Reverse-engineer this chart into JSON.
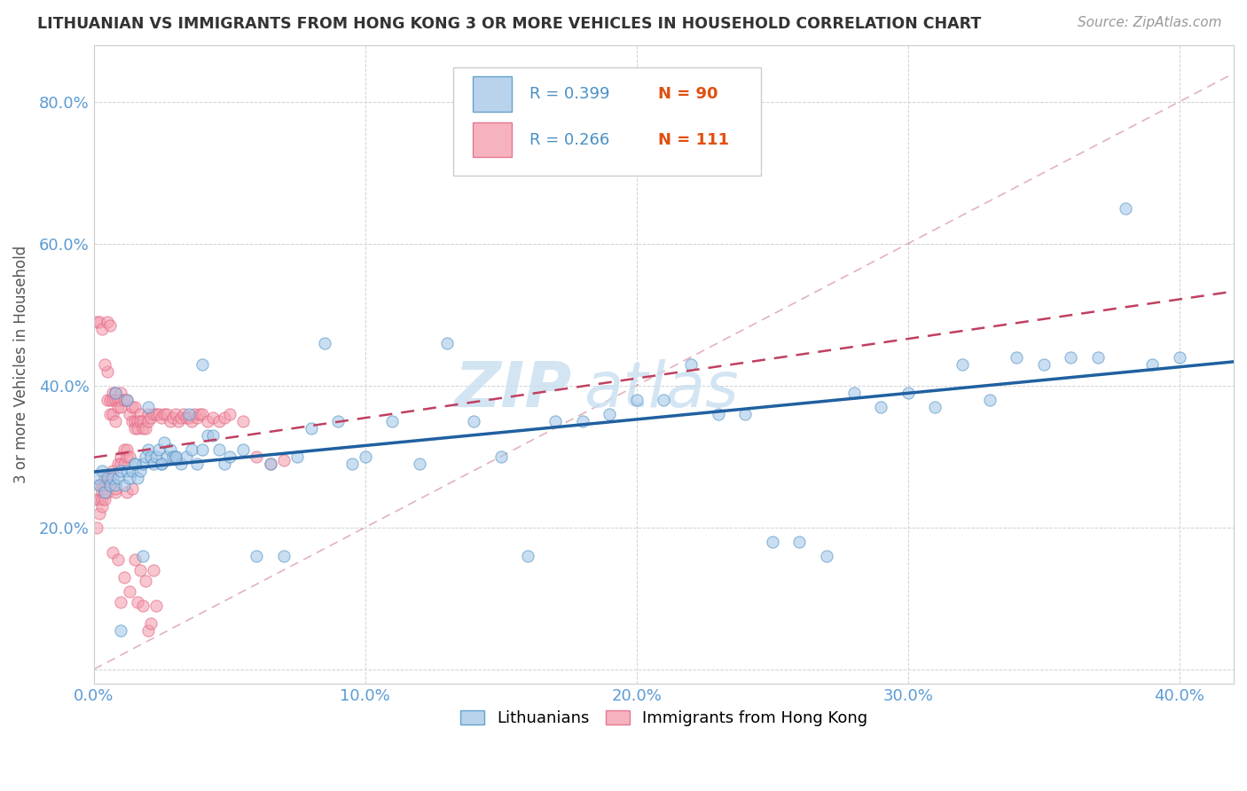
{
  "title": "LITHUANIAN VS IMMIGRANTS FROM HONG KONG 3 OR MORE VEHICLES IN HOUSEHOLD CORRELATION CHART",
  "source": "Source: ZipAtlas.com",
  "ylabel": "3 or more Vehicles in Household",
  "xlim": [
    0.0,
    0.42
  ],
  "ylim": [
    -0.02,
    0.88
  ],
  "xticks": [
    0.0,
    0.1,
    0.2,
    0.3,
    0.4
  ],
  "yticks": [
    0.0,
    0.2,
    0.4,
    0.6,
    0.8
  ],
  "ytick_labels": [
    "",
    "20.0%",
    "40.0%",
    "60.0%",
    "80.0%"
  ],
  "xtick_labels": [
    "0.0%",
    "10.0%",
    "20.0%",
    "30.0%",
    "40.0%"
  ],
  "blue_color": "#a8c8e8",
  "pink_color": "#f4a0b0",
  "blue_edge_color": "#4a90c4",
  "pink_edge_color": "#e06080",
  "blue_line_color": "#2060a0",
  "pink_line_color": "#c04060",
  "diag_line_color": "#d08090",
  "watermark_color": "#c8dff0",
  "legend_R_color": "#4a90c4",
  "legend_N_color": "#e05010",
  "blue_x": [
    0.001,
    0.002,
    0.003,
    0.004,
    0.005,
    0.006,
    0.007,
    0.008,
    0.009,
    0.01,
    0.011,
    0.012,
    0.013,
    0.014,
    0.015,
    0.016,
    0.017,
    0.018,
    0.019,
    0.02,
    0.021,
    0.022,
    0.023,
    0.024,
    0.025,
    0.026,
    0.027,
    0.028,
    0.029,
    0.03,
    0.032,
    0.034,
    0.036,
    0.038,
    0.04,
    0.042,
    0.044,
    0.046,
    0.048,
    0.05,
    0.055,
    0.06,
    0.065,
    0.07,
    0.075,
    0.08,
    0.085,
    0.09,
    0.095,
    0.1,
    0.11,
    0.12,
    0.13,
    0.14,
    0.15,
    0.16,
    0.17,
    0.18,
    0.19,
    0.2,
    0.21,
    0.22,
    0.23,
    0.24,
    0.25,
    0.26,
    0.27,
    0.28,
    0.29,
    0.3,
    0.31,
    0.32,
    0.33,
    0.34,
    0.35,
    0.36,
    0.37,
    0.38,
    0.39,
    0.4,
    0.008,
    0.01,
    0.012,
    0.015,
    0.018,
    0.02,
    0.025,
    0.03,
    0.035,
    0.04
  ],
  "blue_y": [
    0.27,
    0.26,
    0.28,
    0.25,
    0.27,
    0.26,
    0.27,
    0.26,
    0.27,
    0.28,
    0.26,
    0.28,
    0.27,
    0.28,
    0.29,
    0.27,
    0.28,
    0.29,
    0.3,
    0.31,
    0.3,
    0.29,
    0.3,
    0.31,
    0.29,
    0.32,
    0.3,
    0.31,
    0.3,
    0.3,
    0.29,
    0.3,
    0.31,
    0.29,
    0.31,
    0.33,
    0.33,
    0.31,
    0.29,
    0.3,
    0.31,
    0.16,
    0.29,
    0.16,
    0.3,
    0.34,
    0.46,
    0.35,
    0.29,
    0.3,
    0.35,
    0.29,
    0.46,
    0.35,
    0.3,
    0.16,
    0.35,
    0.35,
    0.36,
    0.38,
    0.38,
    0.43,
    0.36,
    0.36,
    0.18,
    0.18,
    0.16,
    0.39,
    0.37,
    0.39,
    0.37,
    0.43,
    0.38,
    0.44,
    0.43,
    0.44,
    0.44,
    0.65,
    0.43,
    0.44,
    0.39,
    0.055,
    0.38,
    0.29,
    0.16,
    0.37,
    0.29,
    0.3,
    0.36,
    0.43
  ],
  "pink_x": [
    0.001,
    0.001,
    0.002,
    0.002,
    0.002,
    0.003,
    0.003,
    0.003,
    0.003,
    0.004,
    0.004,
    0.004,
    0.004,
    0.005,
    0.005,
    0.005,
    0.005,
    0.006,
    0.006,
    0.006,
    0.006,
    0.007,
    0.007,
    0.007,
    0.007,
    0.008,
    0.008,
    0.008,
    0.008,
    0.009,
    0.009,
    0.009,
    0.01,
    0.01,
    0.01,
    0.01,
    0.01,
    0.011,
    0.011,
    0.011,
    0.012,
    0.012,
    0.012,
    0.013,
    0.013,
    0.014,
    0.014,
    0.015,
    0.015,
    0.015,
    0.016,
    0.016,
    0.017,
    0.017,
    0.018,
    0.018,
    0.019,
    0.02,
    0.02,
    0.021,
    0.022,
    0.023,
    0.024,
    0.025,
    0.026,
    0.027,
    0.028,
    0.029,
    0.03,
    0.031,
    0.032,
    0.033,
    0.034,
    0.035,
    0.036,
    0.037,
    0.038,
    0.039,
    0.04,
    0.042,
    0.044,
    0.046,
    0.048,
    0.05,
    0.055,
    0.06,
    0.065,
    0.07,
    0.001,
    0.002,
    0.003,
    0.004,
    0.005,
    0.006,
    0.007,
    0.008,
    0.009,
    0.01,
    0.011,
    0.012,
    0.013,
    0.014,
    0.015,
    0.016,
    0.017,
    0.018,
    0.019,
    0.02,
    0.021,
    0.022,
    0.023
  ],
  "pink_y": [
    0.24,
    0.2,
    0.26,
    0.24,
    0.22,
    0.26,
    0.25,
    0.24,
    0.23,
    0.27,
    0.26,
    0.25,
    0.24,
    0.42,
    0.38,
    0.26,
    0.25,
    0.38,
    0.36,
    0.27,
    0.26,
    0.28,
    0.36,
    0.39,
    0.38,
    0.39,
    0.38,
    0.25,
    0.35,
    0.38,
    0.37,
    0.29,
    0.39,
    0.38,
    0.37,
    0.3,
    0.29,
    0.38,
    0.31,
    0.29,
    0.38,
    0.31,
    0.3,
    0.36,
    0.3,
    0.37,
    0.35,
    0.37,
    0.35,
    0.34,
    0.35,
    0.34,
    0.36,
    0.35,
    0.35,
    0.34,
    0.34,
    0.36,
    0.35,
    0.355,
    0.36,
    0.36,
    0.36,
    0.355,
    0.36,
    0.36,
    0.35,
    0.355,
    0.36,
    0.35,
    0.355,
    0.36,
    0.355,
    0.355,
    0.35,
    0.36,
    0.355,
    0.36,
    0.36,
    0.35,
    0.355,
    0.35,
    0.355,
    0.36,
    0.35,
    0.3,
    0.29,
    0.295,
    0.49,
    0.49,
    0.48,
    0.43,
    0.49,
    0.485,
    0.165,
    0.255,
    0.155,
    0.095,
    0.13,
    0.25,
    0.11,
    0.255,
    0.155,
    0.095,
    0.14,
    0.09,
    0.125,
    0.055,
    0.065,
    0.14,
    0.09
  ]
}
